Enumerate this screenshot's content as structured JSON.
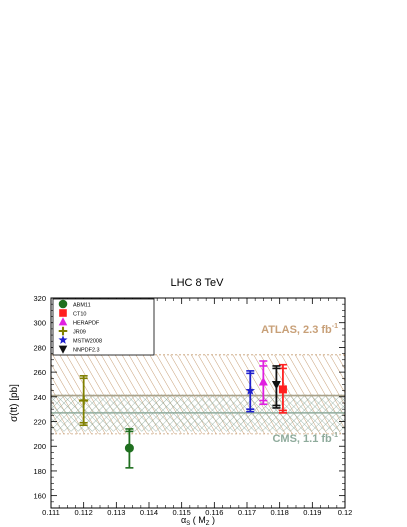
{
  "chart_data": {
    "type": "scatter",
    "title": "LHC 8 TeV",
    "xlabel": "α",
    "xlabel_sub": "S",
    "xlabel_tail": " ( M",
    "xlabel_tail_sub": "Z",
    "xlabel_close": " )",
    "ylabel": "σ(tt) [pb]",
    "xlim": [
      0.111,
      0.12
    ],
    "ylim": [
      150,
      320
    ],
    "x_ticks": [
      "0.111",
      "0.112",
      "0.113",
      "0.114",
      "0.115",
      "0.116",
      "0.117",
      "0.118",
      "0.119",
      "0.12"
    ],
    "y_ticks": [
      "160",
      "180",
      "200",
      "220",
      "240",
      "260",
      "280",
      "300",
      "320"
    ],
    "legend_position": "top-left",
    "series": [
      {
        "name": "ABM11",
        "marker": "circle",
        "color": "#1f6f1f",
        "x": 0.1134,
        "y": 198.5,
        "err_inner": [
          198.5,
          212
        ],
        "err_outer": [
          182.5,
          214
        ]
      },
      {
        "name": "CT10",
        "marker": "square",
        "color": "#ff1f1f",
        "x": 0.1181,
        "y": 246,
        "err_inner": [
          229,
          263
        ],
        "err_outer": [
          227,
          266
        ]
      },
      {
        "name": "HERAPDF",
        "marker": "triangle-up",
        "color": "#e020e0",
        "x": 0.1175,
        "y": 252,
        "err_inner": [
          237,
          265
        ],
        "err_outer": [
          234,
          269
        ]
      },
      {
        "name": "JR09",
        "marker": "cross",
        "color": "#808000",
        "x": 0.112,
        "y": 237,
        "err_inner": [
          219,
          255
        ],
        "err_outer": [
          217,
          257
        ]
      },
      {
        "name": "MSTW2008",
        "marker": "star",
        "color": "#1f1fcc",
        "x": 0.1171,
        "y": 245,
        "err_inner": [
          230,
          259
        ],
        "err_outer": [
          228,
          261
        ]
      },
      {
        "name": "NNPDF2.3",
        "marker": "triangle-down",
        "color": "#111111",
        "x": 0.1179,
        "y": 250,
        "err_inner": [
          233,
          263
        ],
        "err_outer": [
          231,
          265
        ]
      }
    ],
    "bands": [
      {
        "name": "ATLAS",
        "label": "ATLAS, 2.3 fb",
        "label_sup": "-1",
        "color": "#c8a078",
        "central": 241,
        "ymin": 210,
        "ymax": 274
      },
      {
        "name": "CMS",
        "label": "CMS, 1.1 fb",
        "label_sup": "-1",
        "color": "#8fab9c",
        "central": 227,
        "ymin": 212,
        "ymax": 242
      }
    ]
  }
}
